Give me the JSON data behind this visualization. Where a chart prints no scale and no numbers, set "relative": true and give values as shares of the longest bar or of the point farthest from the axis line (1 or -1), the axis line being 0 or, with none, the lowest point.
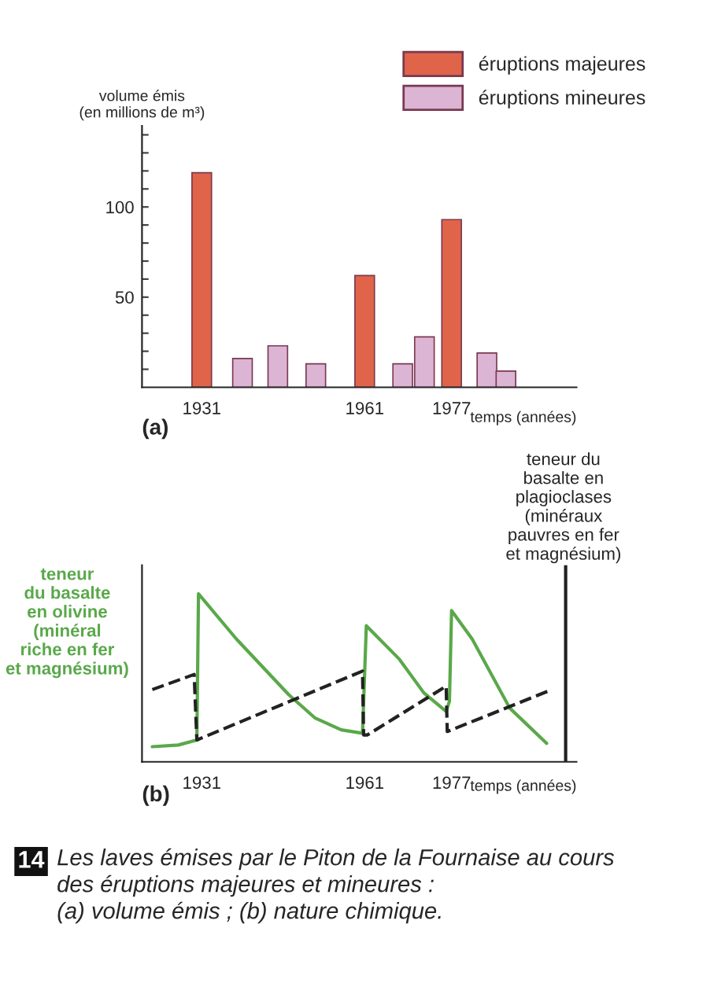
{
  "chart_data": [
    {
      "type": "bar",
      "ylabel": "volume émis\n(en millions de m³)",
      "xlabel": "temps (années)",
      "legend": "top right",
      "xlim": [
        1920,
        2000
      ],
      "xticks": [
        1931,
        1961,
        1977
      ],
      "ylim": [
        0,
        145
      ],
      "yticks": [
        {
          "value": 10,
          "label": null
        },
        {
          "value": 20,
          "label": null
        },
        {
          "value": 30,
          "label": null
        },
        {
          "value": 40,
          "label": null
        },
        50,
        {
          "value": 60,
          "label": null
        },
        {
          "value": 70,
          "label": null
        },
        {
          "value": 80,
          "label": null
        },
        {
          "value": 90,
          "label": null
        },
        100,
        {
          "value": 110,
          "label": null
        },
        {
          "value": 120,
          "label": null
        },
        {
          "value": 130,
          "label": null
        },
        {
          "value": 140,
          "label": null
        }
      ],
      "series": [
        {
          "name": "éruptions majeures",
          "color": "#e0644a",
          "x": [
            1931,
            1961,
            1977
          ],
          "values": [
            119,
            62,
            93
          ]
        },
        {
          "name": "éruptions mineures",
          "color": "#dcb4d4",
          "x": [
            1938.5,
            1945,
            1952,
            1968,
            1972,
            1983.5,
            1987
          ],
          "values": [
            16,
            23,
            13,
            13,
            28,
            19,
            9
          ]
        }
      ],
      "annotations": [
        "(a)"
      ]
    },
    {
      "type": "line",
      "relative": true,
      "xlabel": "temps (années)",
      "ylabel": "teneur\ndu basalte\nen olivine\n(minéral\nriche en fer\net magnésium)",
      "y2label": "teneur du\nbasalte en\nplagioclases\n(minéraux\npauvres en fer\net magnésium)",
      "xlim": [
        1920,
        2000
      ],
      "xticks": [
        1931,
        1961,
        1977
      ],
      "tick_labels": "x",
      "legend": false,
      "ref_lines": [
        {
          "axis": "x",
          "value": 1998,
          "color": "#222222",
          "line_style": "solid"
        }
      ],
      "series": [
        {
          "color": "#5aa84a",
          "line_style": "solid",
          "x": [
            1921.9,
            1926.7,
            1930.1,
            1930.4,
            1937.4,
            1947.0,
            1951.9,
            1956.7,
            1960.6,
            1961.3,
            1967.4,
            1971.9,
            1976.0,
            1976.6,
            1977.0,
            1980.8,
            1987.7,
            1994.5
          ],
          "values": [
            0.09,
            0.1,
            0.13,
            1.0,
            0.73,
            0.4,
            0.26,
            0.19,
            0.17,
            0.81,
            0.61,
            0.41,
            0.3,
            0.36,
            0.9,
            0.73,
            0.32,
            0.11
          ]
        },
        {
          "color": "#222222",
          "line_style": "dashed",
          "axis": "y2",
          "x": [
            1921.9,
            1929.6,
            1930.1,
            1960.6,
            1960.8,
            1961.5,
            1976.0,
            1976.2,
            1995.5
          ],
          "values": [
            0.43,
            0.52,
            0.13,
            0.54,
            0.16,
            0.16,
            0.45,
            0.18,
            0.43
          ]
        }
      ],
      "annotations": [
        "(b)",
        "14",
        "Les laves émises par le Piton de la Fournaise au cours\ndes éruptions majeures et mineures :\n(a) volume émis ; (b) nature chimique."
      ]
    }
  ]
}
